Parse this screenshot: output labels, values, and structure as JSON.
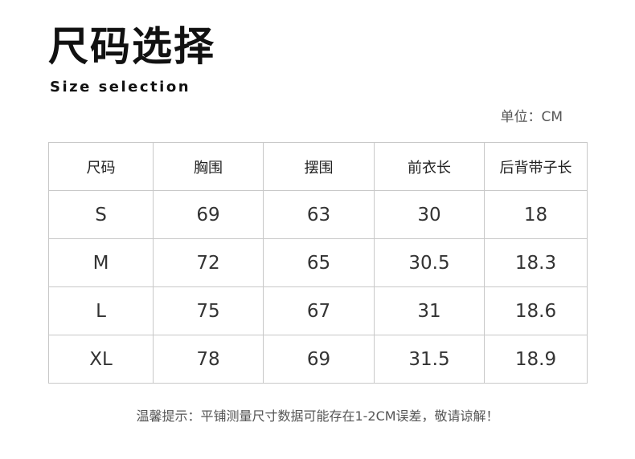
{
  "title": "尺码选择",
  "subtitle": "Size selection",
  "unit": "单位：CM",
  "table": {
    "headers": [
      "尺码",
      "胸围",
      "摆围",
      "前衣长",
      "后背带子长"
    ],
    "rows": [
      [
        "S",
        "69",
        "63",
        "30",
        "18"
      ],
      [
        "M",
        "72",
        "65",
        "30.5",
        "18.3"
      ],
      [
        "L",
        "75",
        "67",
        "31",
        "18.6"
      ],
      [
        "XL",
        "78",
        "69",
        "31.5",
        "18.9"
      ]
    ]
  },
  "note": "温馨提示：平铺测量尺寸数据可能存在1-2CM误差，敬请谅解！"
}
